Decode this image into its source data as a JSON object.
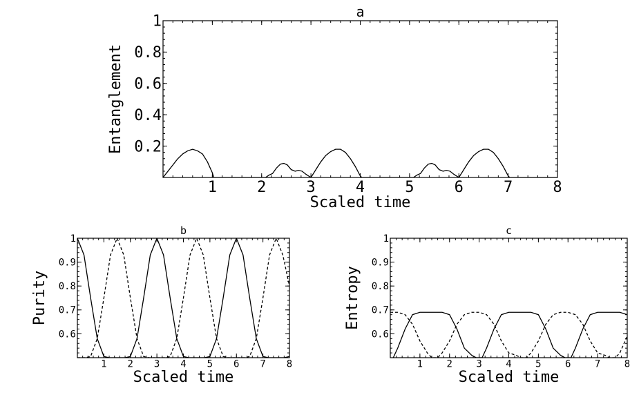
{
  "chart_data": [
    {
      "id": "a",
      "type": "line",
      "title": "a",
      "xlabel": "Scaled time",
      "ylabel": "Entanglement",
      "xlim": [
        0,
        8
      ],
      "ylim": [
        0,
        1
      ],
      "xticks": [
        1,
        2,
        3,
        4,
        5,
        6,
        7,
        8
      ],
      "yticks": [
        0.2,
        0.4,
        0.6,
        0.8,
        1
      ],
      "ytick_labels": [
        "0.2",
        "0.4",
        "0.6",
        "0.8",
        "1"
      ],
      "series": [
        {
          "style": "solid",
          "x": [
            0,
            0.1,
            0.2,
            0.3,
            0.4,
            0.5,
            0.6,
            0.7,
            0.8,
            0.9,
            1.0,
            1.03,
            2.08,
            2.15,
            2.22,
            2.3,
            2.38,
            2.45,
            2.52,
            2.6,
            2.68,
            2.75,
            2.82,
            2.9,
            3.0,
            3.1,
            3.2,
            3.3,
            3.4,
            3.5,
            3.6,
            3.7,
            3.8,
            3.9,
            4.0,
            4.03,
            5.08,
            5.15,
            5.22,
            5.3,
            5.38,
            5.45,
            5.52,
            5.6,
            5.68,
            5.75,
            5.82,
            5.9,
            6.0,
            6.1,
            6.2,
            6.3,
            6.4,
            6.5,
            6.6,
            6.7,
            6.8,
            6.9,
            7.0,
            7.03,
            8.0
          ],
          "y": [
            0,
            0.04,
            0.08,
            0.12,
            0.15,
            0.17,
            0.18,
            0.17,
            0.15,
            0.1,
            0.03,
            0,
            0,
            0.015,
            0.025,
            0.06,
            0.085,
            0.09,
            0.08,
            0.05,
            0.04,
            0.045,
            0.04,
            0.02,
            0,
            0.05,
            0.1,
            0.14,
            0.165,
            0.18,
            0.18,
            0.16,
            0.12,
            0.07,
            0.01,
            0,
            0,
            0.015,
            0.025,
            0.06,
            0.085,
            0.09,
            0.08,
            0.05,
            0.04,
            0.045,
            0.04,
            0.02,
            0,
            0.05,
            0.1,
            0.14,
            0.165,
            0.18,
            0.18,
            0.16,
            0.12,
            0.07,
            0.01,
            0,
            0
          ]
        }
      ]
    },
    {
      "id": "b",
      "type": "line",
      "title": "b",
      "xlabel": "Scaled time",
      "ylabel": "Purity",
      "xlim": [
        0,
        8
      ],
      "ylim": [
        0.5,
        1
      ],
      "xticks": [
        1,
        2,
        3,
        4,
        5,
        6,
        7,
        8
      ],
      "yticks": [
        0.6,
        0.7,
        0.8,
        0.9,
        1
      ],
      "ytick_labels": [
        "0.6",
        "0.7",
        "0.8",
        "0.9",
        "1"
      ],
      "series": [
        {
          "style": "solid",
          "x": [
            0,
            0.25,
            0.5,
            0.75,
            1.0,
            1.2,
            1.5,
            1.8,
            2.0,
            2.25,
            2.5,
            2.75,
            3.0,
            3.25,
            3.5,
            3.75,
            4.0,
            4.2,
            4.5,
            4.8,
            5.0,
            5.25,
            5.5,
            5.75,
            6.0,
            6.25,
            6.5,
            6.75,
            7.0,
            7.2,
            7.5,
            7.8,
            8.0
          ],
          "y": [
            1,
            0.93,
            0.75,
            0.58,
            0.505,
            0.5,
            0.5,
            0.5,
            0.505,
            0.58,
            0.75,
            0.93,
            1,
            0.93,
            0.75,
            0.58,
            0.505,
            0.5,
            0.5,
            0.5,
            0.505,
            0.58,
            0.75,
            0.93,
            1,
            0.93,
            0.75,
            0.58,
            0.505,
            0.5,
            0.5,
            0.5,
            0.505
          ]
        },
        {
          "style": "dashed",
          "x": [
            0,
            0.3,
            0.5,
            0.75,
            1.0,
            1.25,
            1.5,
            1.75,
            2.0,
            2.25,
            2.5,
            2.7,
            3.0,
            3.3,
            3.5,
            3.75,
            4.0,
            4.25,
            4.5,
            4.75,
            5.0,
            5.25,
            5.5,
            5.7,
            6.0,
            6.3,
            6.5,
            6.75,
            7.0,
            7.25,
            7.5,
            7.75,
            8.0
          ],
          "y": [
            0.5,
            0.5,
            0.505,
            0.58,
            0.75,
            0.93,
            1,
            0.93,
            0.75,
            0.58,
            0.505,
            0.5,
            0.5,
            0.5,
            0.505,
            0.58,
            0.75,
            0.93,
            1,
            0.93,
            0.75,
            0.58,
            0.505,
            0.5,
            0.5,
            0.5,
            0.505,
            0.58,
            0.75,
            0.93,
            1,
            0.93,
            0.8
          ]
        }
      ]
    },
    {
      "id": "c",
      "type": "line",
      "title": "c",
      "xlabel": "Scaled time",
      "ylabel": "Entropy",
      "xlim": [
        0,
        8
      ],
      "ylim": [
        0.5,
        1
      ],
      "xticks": [
        1,
        2,
        3,
        4,
        5,
        6,
        7,
        8
      ],
      "yticks": [
        0.6,
        0.7,
        0.8,
        0.9,
        1
      ],
      "ytick_labels": [
        "0.6",
        "0.7",
        "0.8",
        "0.9",
        "1"
      ],
      "series": [
        {
          "style": "solid",
          "x": [
            0.1,
            0.25,
            0.5,
            0.75,
            1.0,
            1.25,
            1.5,
            1.75,
            2.0,
            2.25,
            2.5,
            2.75,
            2.9,
            3.1,
            3.25,
            3.5,
            3.75,
            4.0,
            4.25,
            4.5,
            4.75,
            5.0,
            5.25,
            5.5,
            5.75,
            5.9,
            6.1,
            6.25,
            6.5,
            6.75,
            7.0,
            7.25,
            7.5,
            7.75,
            8.0
          ],
          "y": [
            0.5,
            0.54,
            0.62,
            0.68,
            0.69,
            0.69,
            0.69,
            0.69,
            0.68,
            0.62,
            0.54,
            0.51,
            0.5,
            0.5,
            0.54,
            0.62,
            0.68,
            0.69,
            0.69,
            0.69,
            0.69,
            0.68,
            0.62,
            0.54,
            0.51,
            0.5,
            0.5,
            0.54,
            0.62,
            0.68,
            0.69,
            0.69,
            0.69,
            0.69,
            0.68
          ]
        },
        {
          "style": "dashed",
          "x": [
            0,
            0.25,
            0.5,
            0.75,
            1.0,
            1.25,
            1.4,
            1.6,
            1.75,
            2.0,
            2.25,
            2.5,
            2.75,
            3.0,
            3.25,
            3.5,
            3.75,
            4.0,
            4.25,
            4.4,
            4.6,
            4.75,
            5.0,
            5.25,
            5.5,
            5.75,
            6.0,
            6.25,
            6.5,
            6.75,
            7.0,
            7.25,
            7.4,
            7.6,
            7.75,
            8.0
          ],
          "y": [
            0.69,
            0.69,
            0.68,
            0.64,
            0.57,
            0.52,
            0.5,
            0.5,
            0.52,
            0.57,
            0.64,
            0.68,
            0.69,
            0.69,
            0.68,
            0.64,
            0.57,
            0.52,
            0.51,
            0.5,
            0.5,
            0.52,
            0.57,
            0.64,
            0.68,
            0.69,
            0.69,
            0.68,
            0.64,
            0.57,
            0.52,
            0.51,
            0.5,
            0.5,
            0.52,
            0.59
          ]
        }
      ]
    }
  ]
}
